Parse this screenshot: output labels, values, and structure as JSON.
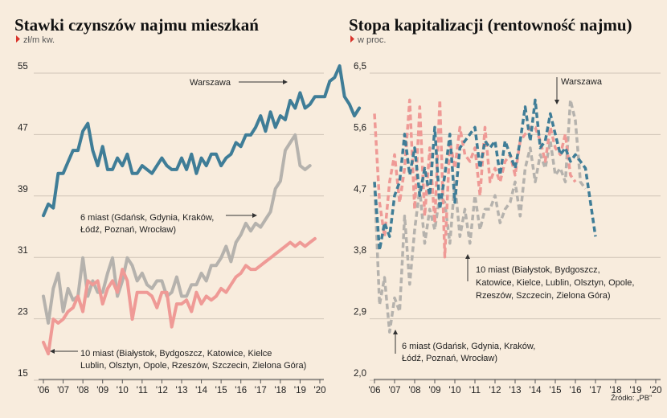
{
  "colors": {
    "background": "#f8ecdd",
    "warszawa": "#3f7d97",
    "six_cities": "#b5b2ad",
    "ten_cities": "#ef9a96",
    "marker": "#d9342b"
  },
  "footer": {
    "source": "Źródło: „PB”"
  },
  "chart_data": [
    {
      "type": "line",
      "title": "Stawki czynszów najmu mieszkań",
      "unit": "zł/m kw.",
      "ylim": [
        15,
        55
      ],
      "yticks": [
        "55",
        "47",
        "39",
        "31",
        "23",
        "15"
      ],
      "xticks": [
        "'06",
        "'07",
        "'08",
        "'09",
        "'10",
        "'11",
        "'12",
        "'13",
        "'14",
        "'15",
        "'16",
        "'17",
        "'18",
        "'19",
        "'20"
      ],
      "grid": true,
      "annotations": [
        {
          "text": "Warszawa"
        },
        {
          "lines": [
            "6 miast (Gdańsk, Gdynia, Kraków,",
            "Łódź, Poznań, Wrocław)"
          ]
        },
        {
          "lines": [
            "10 miast (Białystok, Bydgoszcz, Katowice, Kielce",
            "Lublin, Olsztyn, Opole, Rzeszów, Szczecin, Zielona Góra)"
          ]
        }
      ],
      "series": [
        {
          "key": "warszawa",
          "x_start": 2006.0,
          "step": 0.25,
          "values": [
            35.5,
            37.0,
            36.5,
            41.0,
            41.0,
            42.5,
            44.0,
            44.0,
            46.5,
            47.5,
            44.0,
            42.0,
            44.5,
            41.5,
            41.5,
            43.0,
            42.0,
            43.5,
            41.0,
            41.0,
            42.0,
            41.5,
            41.0,
            42.0,
            43.0,
            42.0,
            41.5,
            41.5,
            43.0,
            41.5,
            43.5,
            41.0,
            43.0,
            42.0,
            43.5,
            43.5,
            42.0,
            43.0,
            43.5,
            45.0,
            44.5,
            46.0,
            46.0,
            47.0,
            48.5,
            46.5,
            49.0,
            47.0,
            48.5,
            48.0,
            50.5,
            49.5,
            51.5,
            49.5,
            50.0,
            51.0,
            51.0,
            51.0,
            53.0,
            53.5,
            55.0,
            51.0,
            50.0,
            48.5,
            49.5
          ]
        },
        {
          "key": "six_cities",
          "x_start": 2006.0,
          "step": 0.25,
          "values": [
            25.0,
            21.5,
            26.0,
            28.0,
            23.0,
            26.0,
            24.5,
            25.0,
            30.0,
            25.0,
            27.0,
            25.5,
            25.5,
            28.0,
            30.0,
            25.0,
            27.0,
            30.0,
            29.0,
            27.0,
            28.0,
            26.5,
            26.0,
            27.0,
            27.0,
            25.0,
            25.5,
            27.5,
            25.0,
            25.0,
            26.5,
            26.5,
            28.0,
            27.0,
            29.0,
            29.0,
            30.0,
            31.5,
            29.5,
            32.0,
            33.0,
            34.5,
            33.5,
            34.5,
            34.0,
            35.0,
            36.0,
            39.0,
            40.0,
            44.0,
            45.0,
            46.0,
            42.0,
            41.5,
            42.0
          ]
        },
        {
          "key": "ten_cities",
          "x_start": 2006.0,
          "step": 0.25,
          "values": [
            19.0,
            17.5,
            22.0,
            21.5,
            22.0,
            23.0,
            23.5,
            25.0,
            23.0,
            27.0,
            26.5,
            27.0,
            24.0,
            26.0,
            27.0,
            25.5,
            28.5,
            27.0,
            22.0,
            25.5,
            25.5,
            25.5,
            25.0,
            23.5,
            25.5,
            25.5,
            21.0,
            24.0,
            24.0,
            24.5,
            23.0,
            25.5,
            24.0,
            25.0,
            24.5,
            25.0,
            26.0,
            25.5,
            26.5,
            27.5,
            28.0,
            29.0,
            28.5,
            28.5,
            29.0,
            29.5,
            30.0,
            30.5,
            31.0,
            31.5,
            32.0,
            31.5,
            32.0,
            31.5,
            32.0,
            32.5
          ]
        }
      ]
    },
    {
      "type": "line",
      "title": "Stopa kapitalizacji (rentowność najmu)",
      "unit": "w proc.",
      "ylim": [
        2.0,
        6.5
      ],
      "yticks": [
        "6,5",
        "5,6",
        "4,7",
        "3,8",
        "2,9",
        "2,0"
      ],
      "xticks": [
        "'06",
        "'07",
        "'08",
        "'09",
        "'10",
        "'11",
        "'12",
        "'13",
        "'14",
        "'15",
        "'16",
        "'17",
        "'18",
        "'19",
        "'20"
      ],
      "grid": true,
      "line_style": "dashed",
      "annotations": [
        {
          "text": "Warszawa"
        },
        {
          "lines": [
            "10 miast (Białystok, Bydgoszcz,",
            "Katowice, Kielce, Lublin, Olsztyn, Opole,",
            "Rzeszów, Szczecin, Zielona Góra)"
          ]
        },
        {
          "lines": [
            "6 miast (Gdańsk, Gdynia, Kraków,",
            "Łódź, Poznań, Wrocław)"
          ]
        }
      ],
      "series": [
        {
          "key": "warszawa",
          "x_start": 2006.0,
          "step": 0.25,
          "values": [
            4.8,
            3.8,
            4.2,
            4.0,
            4.6,
            4.8,
            5.5,
            4.9,
            5.3,
            4.6,
            5.0,
            4.6,
            5.6,
            4.4,
            4.9,
            5.5,
            4.5,
            5.3,
            5.4,
            5.5,
            5.6,
            5.0,
            5.4,
            5.3,
            5.4,
            4.9,
            5.4,
            5.2,
            5.0,
            5.4,
            5.9,
            5.4,
            6.0,
            5.3,
            5.4,
            5.8,
            5.5,
            5.2,
            5.3,
            5.1,
            5.2,
            5.1,
            5.0,
            4.5,
            4.0
          ]
        },
        {
          "key": "ten_cities",
          "x_start": 2006.0,
          "step": 0.25,
          "values": [
            5.8,
            4.5,
            4.0,
            4.8,
            5.2,
            4.5,
            5.0,
            6.0,
            4.4,
            5.9,
            4.3,
            5.3,
            4.2,
            6.0,
            3.7,
            5.4,
            5.0,
            5.6,
            5.2,
            5.1,
            5.3,
            4.6,
            5.6,
            4.8,
            5.0,
            4.8,
            5.1,
            5.2,
            4.9,
            5.4,
            5.5,
            5.6,
            5.6,
            5.4,
            5.1,
            5.6,
            5.3,
            5.2,
            5.5,
            4.9,
            4.8
          ]
        },
        {
          "key": "six_cities",
          "x_start": 2006.0,
          "step": 0.25,
          "values": [
            4.8,
            3.0,
            3.4,
            2.6,
            3.1,
            2.9,
            4.3,
            3.3,
            4.1,
            4.7,
            3.9,
            4.4,
            4.1,
            4.6,
            4.5,
            3.9,
            4.8,
            4.0,
            4.4,
            3.9,
            4.6,
            4.1,
            4.4,
            4.4,
            4.6,
            4.2,
            4.4,
            4.5,
            4.8,
            4.3,
            5.0,
            5.3,
            4.8,
            5.2,
            5.0,
            5.4,
            4.9,
            5.0,
            4.8,
            6.0,
            5.7,
            4.8,
            4.7
          ]
        }
      ]
    }
  ]
}
